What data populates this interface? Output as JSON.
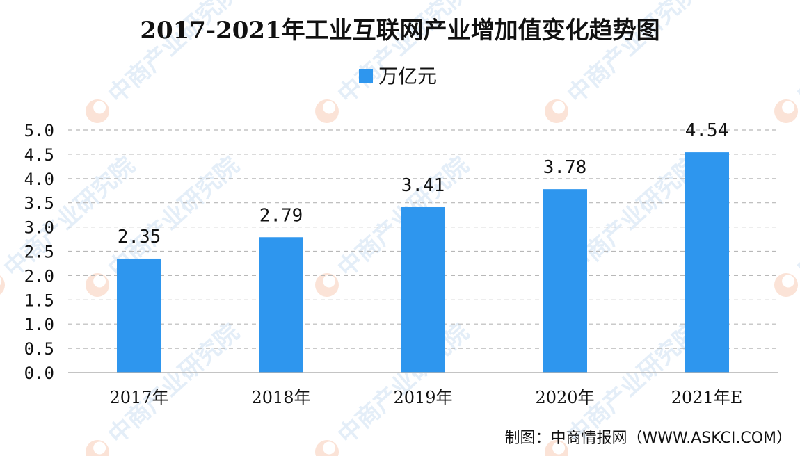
{
  "watermark": {
    "text": "中商产业研究院",
    "colors": [
      "#e4eef8",
      "#fbe3d7"
    ]
  },
  "source": {
    "text": "制图：中商情报网（WWW.ASKCI.COM）"
  },
  "chart_data": {
    "type": "bar",
    "title": "2017-2021年工业互联网产业增加值变化趋势图",
    "xlabel": "",
    "ylabel": "",
    "categories": [
      "2017年",
      "2018年",
      "2019年",
      "2020年",
      "2021年E"
    ],
    "series": [
      {
        "name": "万亿元",
        "values": [
          2.35,
          2.79,
          3.41,
          3.78,
          4.54
        ],
        "labels": [
          "2.35",
          "2.79",
          "3.41",
          "3.78",
          "4.54"
        ],
        "color": "#2e96ee"
      }
    ],
    "ylim": [
      0,
      5
    ],
    "yticks": [
      0,
      0.5,
      1,
      1.5,
      2,
      2.5,
      3,
      3.5,
      4,
      4.5,
      5
    ],
    "ytick_labels": [
      "0.0",
      "0.5",
      "1.0",
      "1.5",
      "2.0",
      "2.5",
      "3.0",
      "3.5",
      "4.0",
      "4.5",
      "5.0"
    ],
    "grid": true,
    "legend_position": "top-center"
  }
}
